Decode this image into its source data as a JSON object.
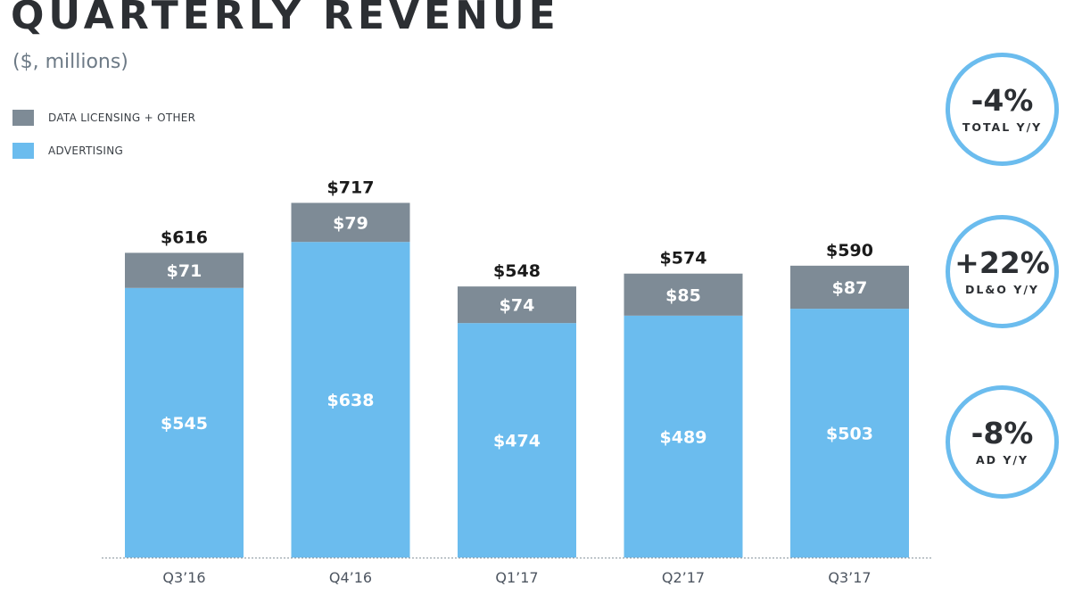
{
  "colors": {
    "advertising": "#6bbcee",
    "data_licensing": "#7e8b96",
    "bar_label": "#ffffff",
    "total_label": "#1a1a1a",
    "axis": "#9aa3ab",
    "tick_label": "#4d5560"
  },
  "chart_data": {
    "type": "bar",
    "stacked": true,
    "title": "QUARTERLY REVENUE",
    "subtitle": "($, millions)",
    "xlabel": "",
    "ylabel": "",
    "ylim": [
      0,
      780
    ],
    "grid": false,
    "legend_placement": "top-left",
    "categories": [
      "Q3’16",
      "Q4’16",
      "Q1’17",
      "Q2’17",
      "Q3’17"
    ],
    "series": [
      {
        "name": "ADVERTISING",
        "values": [
          545,
          638,
          474,
          489,
          503
        ],
        "labels": [
          "$545",
          "$638",
          "$474",
          "$489",
          "$503"
        ]
      },
      {
        "name": "DATA LICENSING + OTHER",
        "values": [
          71,
          79,
          74,
          85,
          87
        ],
        "labels": [
          "$71",
          "$79",
          "$74",
          "$85",
          "$87"
        ]
      }
    ],
    "totals": [
      616,
      717,
      548,
      574,
      590
    ],
    "total_labels": [
      "$616",
      "$717",
      "$548",
      "$574",
      "$590"
    ]
  },
  "legend": [
    {
      "label": "DATA LICENSING + OTHER",
      "color": "#7e8b96"
    },
    {
      "label": "ADVERTISING",
      "color": "#6bbcee"
    }
  ],
  "callouts": [
    {
      "value": "-4%",
      "label": "TOTAL Y/Y"
    },
    {
      "value": "+22%",
      "label": "DL&O Y/Y"
    },
    {
      "value": "-8%",
      "label": "AD Y/Y"
    }
  ]
}
